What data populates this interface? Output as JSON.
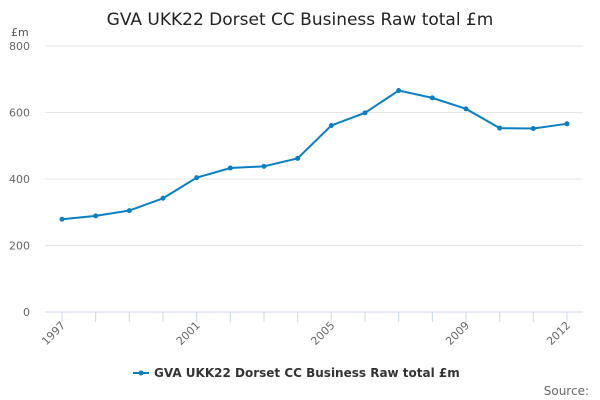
{
  "chart_data": {
    "type": "line",
    "title": "GVA UKK22 Dorset CC Business Raw total £m",
    "ylabel": "£m",
    "xlabel": "",
    "ylim": [
      0,
      800
    ],
    "yticks": [
      0,
      200,
      400,
      600,
      800
    ],
    "xtick_labels": [
      "1997",
      "2001",
      "2005",
      "2009",
      "2012"
    ],
    "x": [
      1997,
      1998,
      1999,
      2000,
      2001,
      2002,
      2003,
      2004,
      2005,
      2006,
      2007,
      2008,
      2009,
      2010,
      2011,
      2012
    ],
    "series": [
      {
        "name": "GVA UKK22 Dorset CC Business Raw total £m",
        "color": "#0a7fc4",
        "values": [
          279,
          289,
          305,
          342,
          404,
          433,
          438,
          462,
          561,
          599,
          666,
          644,
          611,
          553,
          552,
          566
        ]
      }
    ],
    "grid": true,
    "legend": "bottom-center",
    "source_label": "Source:"
  }
}
